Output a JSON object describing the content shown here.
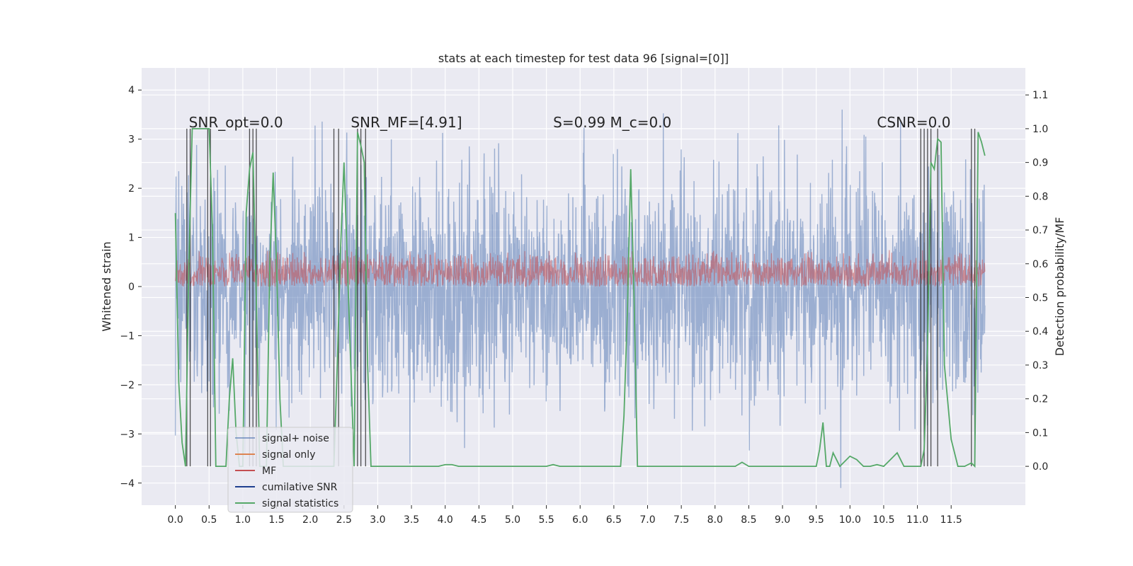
{
  "chart_data": {
    "type": "line",
    "title": "stats at each timestep for test data 96 [signal=[0]]",
    "ylabel_left": "Whitened strain",
    "ylabel_right": "Detection probability/MF",
    "xlim": [
      -0.5,
      12.6
    ],
    "ylim_left": [
      -4.45,
      4.45
    ],
    "ylim_right": [
      -0.115,
      1.18
    ],
    "x_ticks": [
      "0.0",
      "0.5",
      "1.0",
      "1.5",
      "2.0",
      "2.5",
      "3.0",
      "3.5",
      "4.0",
      "4.5",
      "5.0",
      "5.5",
      "6.0",
      "6.5",
      "7.0",
      "7.5",
      "8.0",
      "8.5",
      "9.0",
      "9.5",
      "10.0",
      "10.5",
      "11.0",
      "11.5"
    ],
    "y_ticks_left": [
      "4",
      "3",
      "2",
      "1",
      "0",
      "−1",
      "−2",
      "−3",
      "−4"
    ],
    "y_ticks_right": [
      "1.1",
      "1.0",
      "0.9",
      "0.8",
      "0.7",
      "0.6",
      "0.5",
      "0.4",
      "0.3",
      "0.2",
      "0.1",
      "0.0"
    ],
    "annotations": [
      {
        "text": "SNR_opt=0.0",
        "x": 0.2
      },
      {
        "text": "SNR_MF=[4.91]",
        "x": 2.6
      },
      {
        "text": "S=0.99  M_c=0.0",
        "x": 5.6
      },
      {
        "text": "CSNR=0.0",
        "x": 10.4
      }
    ],
    "legend": {
      "placement": "lower-left",
      "entries": [
        {
          "name": "signal+ noise",
          "color": "#4c72b0"
        },
        {
          "name": "signal only",
          "color": "#dd8452"
        },
        {
          "name": "MF",
          "color": "#c44e52"
        },
        {
          "name": "cumilative SNR",
          "color": "#1f3f8f"
        },
        {
          "name": "signal statistics",
          "color": "#55a868"
        }
      ]
    },
    "series": [
      {
        "name": "signal+ noise",
        "axis": "left",
        "color": "#4c72b0",
        "noise_std": 1.0,
        "t_start": 0.0,
        "t_end": 12.0
      },
      {
        "name": "MF",
        "axis": "left",
        "color": "#c44e52",
        "band_range": [
          0.0,
          0.75
        ],
        "t_start": 0.0,
        "t_end": 12.0
      },
      {
        "name": "signal statistics",
        "axis": "right",
        "color": "#55a868",
        "x": [
          0.0,
          0.05,
          0.1,
          0.15,
          0.2,
          0.25,
          0.3,
          0.35,
          0.4,
          0.45,
          0.5,
          0.55,
          0.6,
          0.65,
          0.7,
          0.75,
          0.8,
          0.85,
          0.9,
          0.95,
          1.0,
          1.05,
          1.1,
          1.15,
          1.2,
          1.25,
          1.3,
          1.35,
          1.4,
          1.45,
          1.5,
          1.55,
          1.6,
          1.65,
          1.7,
          1.75,
          1.8,
          1.85,
          1.9,
          1.95,
          2.0,
          2.05,
          2.1,
          2.15,
          2.2,
          2.25,
          2.3,
          2.35,
          2.4,
          2.45,
          2.5,
          2.55,
          2.6,
          2.65,
          2.7,
          2.75,
          2.8,
          2.85,
          2.9,
          3.0,
          3.5,
          3.9,
          4.0,
          4.1,
          4.2,
          5.0,
          5.5,
          5.6,
          5.7,
          6.0,
          6.5,
          6.6,
          6.65,
          6.7,
          6.75,
          6.8,
          6.85,
          6.9,
          7.0,
          8.0,
          8.3,
          8.4,
          8.5,
          9.0,
          9.4,
          9.5,
          9.55,
          9.6,
          9.65,
          9.7,
          9.75,
          9.8,
          9.85,
          9.9,
          10.0,
          10.1,
          10.2,
          10.3,
          10.4,
          10.5,
          10.6,
          10.7,
          10.8,
          10.9,
          11.0,
          11.05,
          11.1,
          11.15,
          11.2,
          11.25,
          11.3,
          11.35,
          11.4,
          11.5,
          11.6,
          11.7,
          11.8,
          11.85,
          11.9,
          11.95,
          12.0
        ],
        "y": [
          0.75,
          0.25,
          0.07,
          0.0,
          0.6,
          1.0,
          1.0,
          1.0,
          1.0,
          1.0,
          1.0,
          0.7,
          0.0,
          0.0,
          0.0,
          0.0,
          0.2,
          0.32,
          0.1,
          0.0,
          0.0,
          0.75,
          0.88,
          0.93,
          0.5,
          0.0,
          0.0,
          0.0,
          0.6,
          0.87,
          0.6,
          0.2,
          0.0,
          0.0,
          0.0,
          0.0,
          0.0,
          0.0,
          0.0,
          0.0,
          0.0,
          0.0,
          0.0,
          0.0,
          0.0,
          0.0,
          0.0,
          0.0,
          0.3,
          0.65,
          0.9,
          0.6,
          0.3,
          0.0,
          0.99,
          0.95,
          0.9,
          0.3,
          0.0,
          0.0,
          0.0,
          0.0,
          0.005,
          0.005,
          0.0,
          0.0,
          0.0,
          0.005,
          0.0,
          0.0,
          0.0,
          0.0,
          0.15,
          0.45,
          0.88,
          0.5,
          0.0,
          0.0,
          0.0,
          0.0,
          0.0,
          0.012,
          0.0,
          0.0,
          0.0,
          0.0,
          0.05,
          0.13,
          0.0,
          0.0,
          0.04,
          0.02,
          0.0,
          0.01,
          0.03,
          0.02,
          0.0,
          0.0,
          0.005,
          0.0,
          0.02,
          0.04,
          0.0,
          0.0,
          0.0,
          0.0,
          0.05,
          0.35,
          0.9,
          0.88,
          0.97,
          0.96,
          0.3,
          0.08,
          0.0,
          0.0,
          0.01,
          0.0,
          0.99,
          0.96,
          0.92
        ]
      },
      {
        "name": "cumilative SNR",
        "axis": "right",
        "color": "#262626",
        "style": "vertical-lines",
        "x_positions": [
          0.17,
          0.22,
          0.48,
          0.52,
          1.1,
          1.15,
          1.2,
          2.35,
          2.42,
          2.7,
          2.75,
          2.82,
          11.05,
          11.1,
          11.15,
          11.2,
          11.3,
          11.8,
          11.85
        ],
        "y_range": [
          0.0,
          1.0
        ]
      }
    ]
  }
}
